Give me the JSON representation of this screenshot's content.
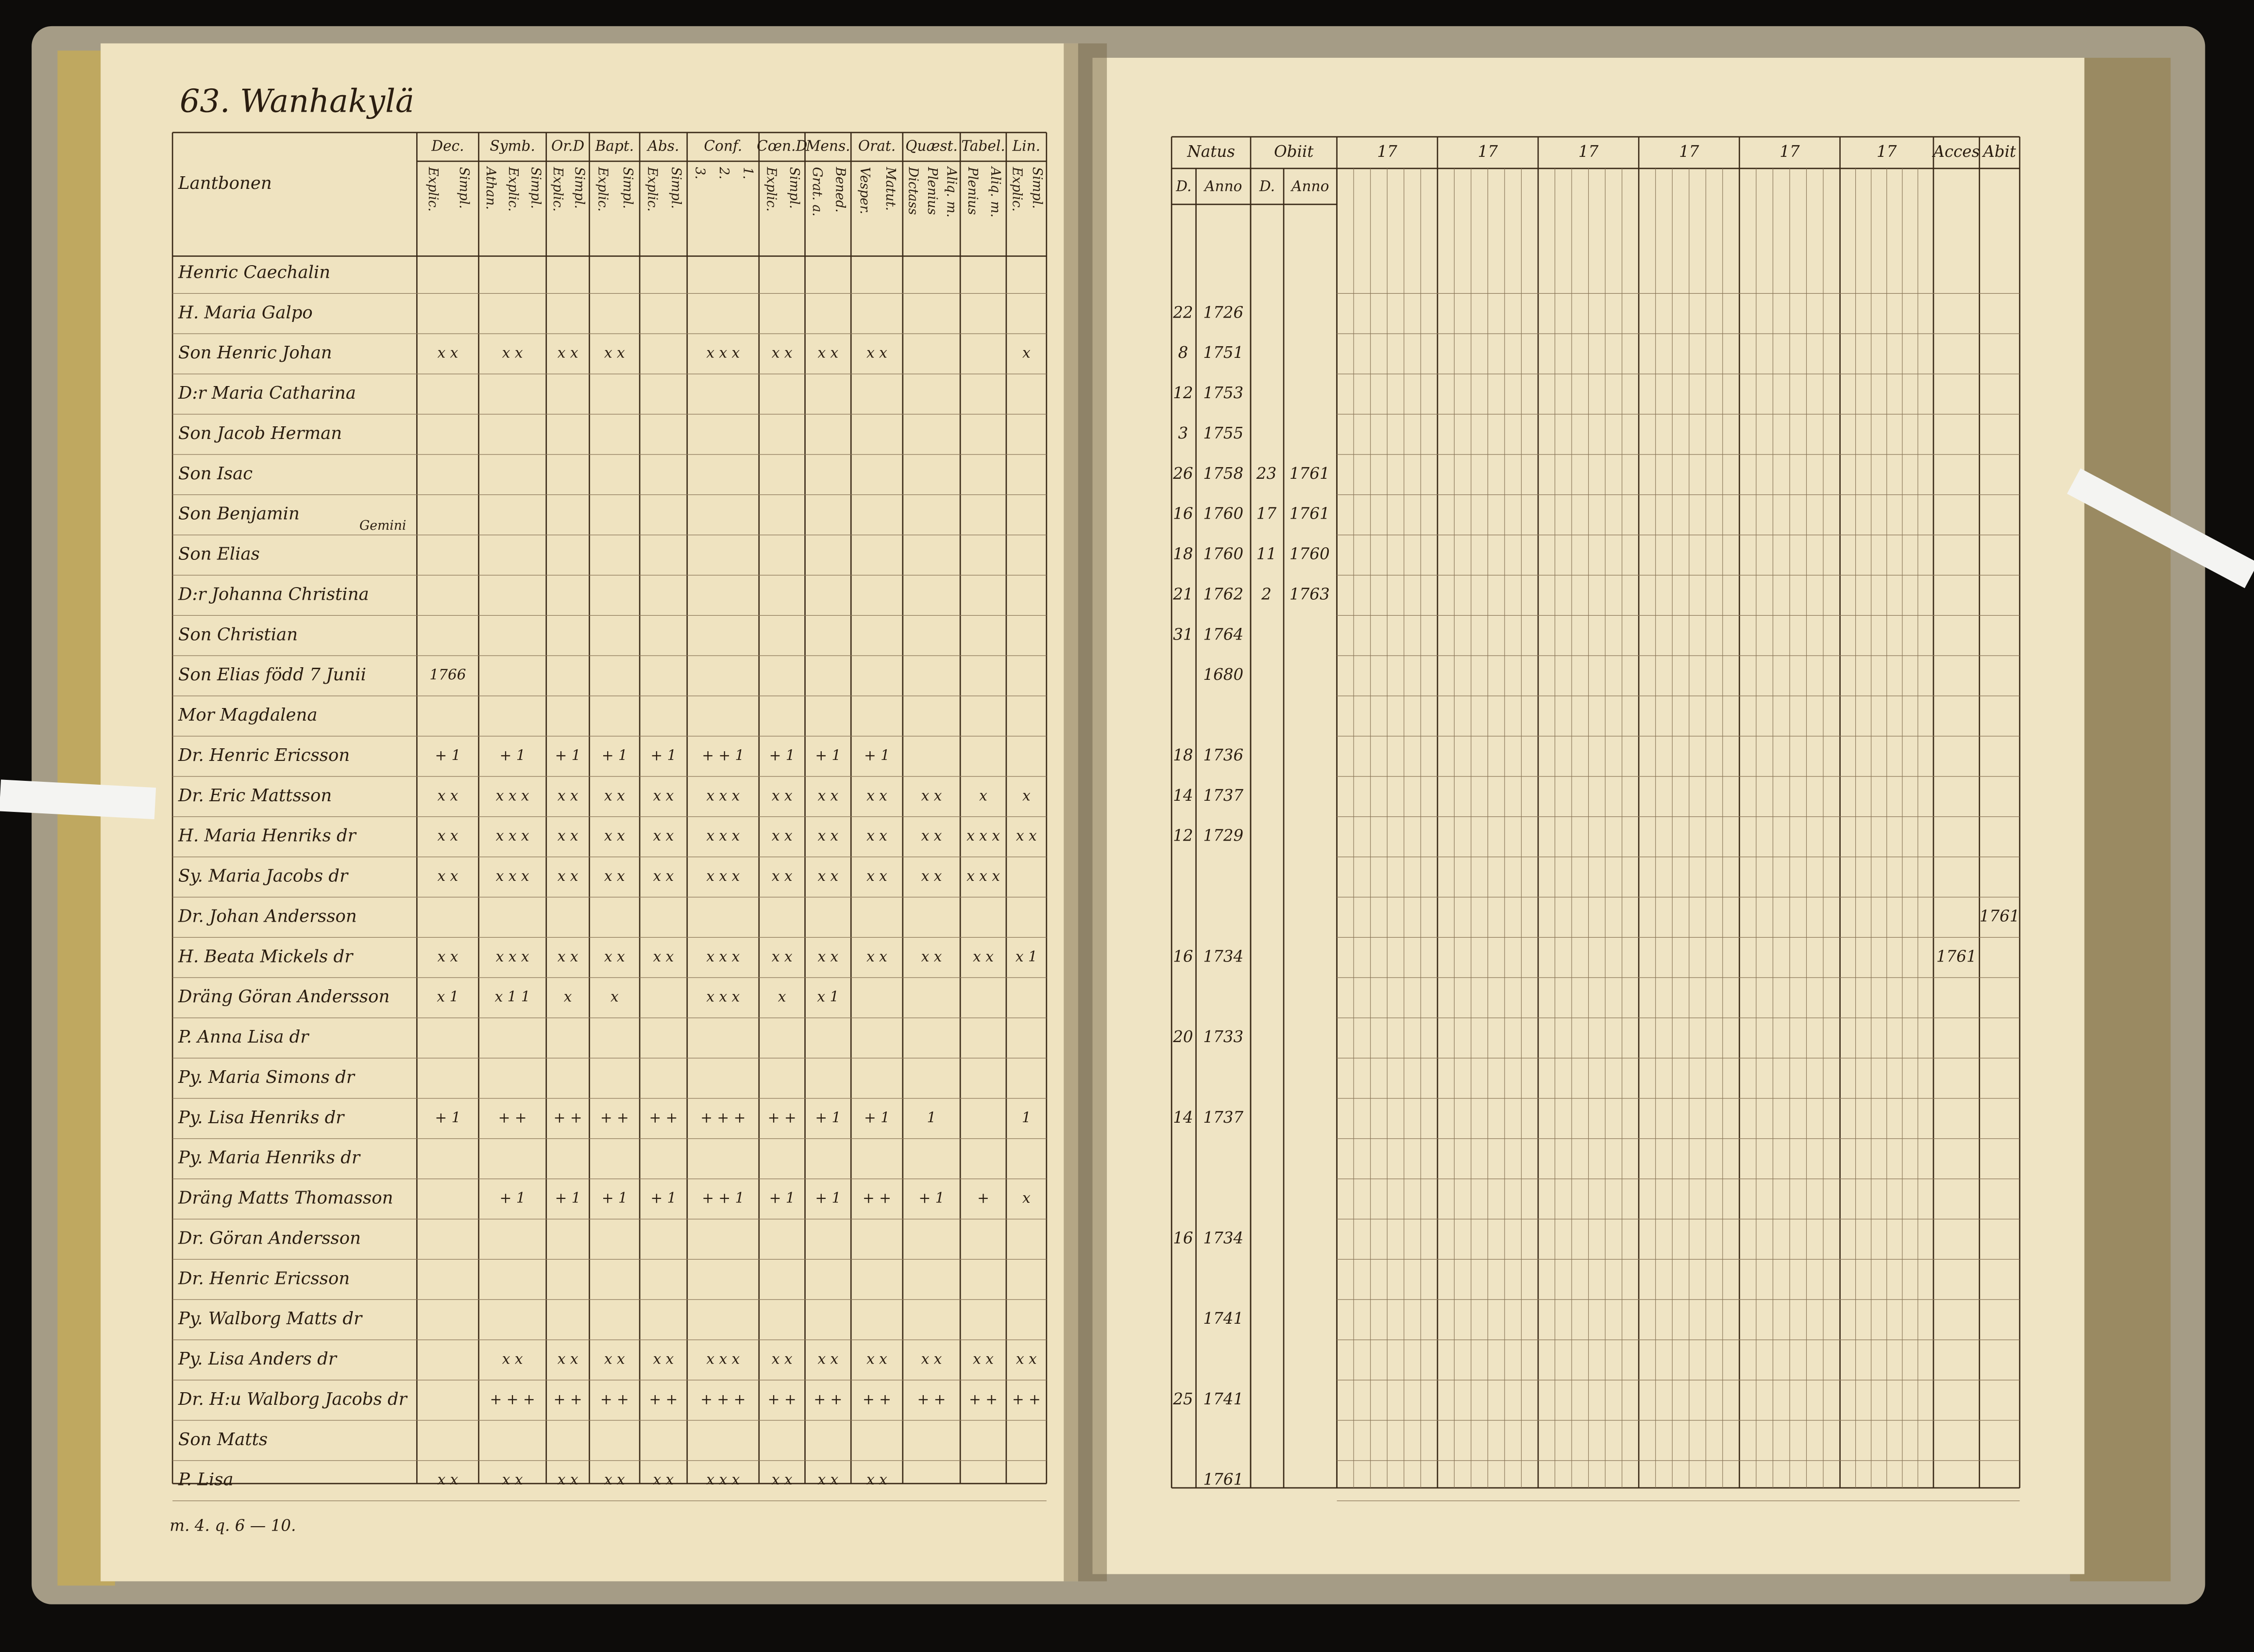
{
  "left_page": {
    "title": "63. Wanhakylä",
    "header": "Lantbonen",
    "columns": [
      {
        "name": "Dec.",
        "sub": [
          "Explic.",
          "Simpl."
        ]
      },
      {
        "name": "Symb.",
        "sub": [
          "Athan.",
          "Explic.",
          "Simpl."
        ]
      },
      {
        "name": "Or.D",
        "sub": [
          "Explic.",
          "Simpl."
        ]
      },
      {
        "name": "Bapt.",
        "sub": [
          "Explic.",
          "Simpl."
        ]
      },
      {
        "name": "Abs.",
        "sub": [
          "Explic.",
          "Simpl."
        ]
      },
      {
        "name": "Conf.",
        "sub": [
          "3.",
          "2.",
          "1."
        ]
      },
      {
        "name": "Cœn.D",
        "sub": [
          "Explic.",
          "Simpl."
        ]
      },
      {
        "name": "Mens.",
        "sub": [
          "Grat. a.",
          "Bened."
        ]
      },
      {
        "name": "Orat.",
        "sub": [
          "Vesper.",
          "Matut."
        ]
      },
      {
        "name": "Quæst.",
        "sub": [
          "Dictass",
          "Plenius",
          "Aliq. m."
        ]
      },
      {
        "name": "Tabel.",
        "sub": [
          "Plenius",
          "Aliq. m."
        ]
      },
      {
        "name": "Lin.",
        "sub": [
          "Explic.",
          "Simpl."
        ]
      }
    ],
    "rows": [
      {
        "name": "Henric Caechalin"
      },
      {
        "name": "H. Maria Galpo"
      },
      {
        "name": "Son Henric Johan",
        "marks": [
          "x x",
          "x x",
          "x x",
          "x x",
          null,
          "x x x",
          "x x",
          "x x",
          "x x",
          null,
          null,
          "x"
        ]
      },
      {
        "name": "D:r Maria Catharina"
      },
      {
        "name": "Son Jacob Herman"
      },
      {
        "name": "Son Isac"
      },
      {
        "name": "Son Benjamin",
        "note": "Gemini"
      },
      {
        "name": "Son Elias"
      },
      {
        "name": "D:r Johanna Christina"
      },
      {
        "name": "Son Christian"
      },
      {
        "name": "Son Elias född 7 Junii",
        "marks": [
          "1766",
          null,
          null,
          null,
          null,
          null,
          null,
          null,
          null,
          null,
          null,
          null
        ]
      },
      {
        "name": "Mor Magdalena"
      },
      {
        "name": "Dr. Henric Ericsson",
        "marks": [
          "+ 1",
          "+ 1",
          "+ 1",
          "+ 1",
          "+ 1",
          "+ + 1",
          "+ 1",
          "+ 1",
          "+ 1",
          null,
          null,
          null
        ]
      },
      {
        "name": "Dr. Eric Mattsson",
        "marks": [
          "x x",
          "x x x",
          "x x",
          "x x",
          "x x",
          "x x x",
          "x x",
          "x x",
          "x x",
          "x x",
          "x",
          "x"
        ]
      },
      {
        "name": "H. Maria Henriks dr",
        "marks": [
          "x x",
          "x x x",
          "x x",
          "x x",
          "x x",
          "x x x",
          "x x",
          "x x",
          "x x",
          "x x",
          "x x x",
          "x x"
        ]
      },
      {
        "name": "Sy. Maria Jacobs dr",
        "marks": [
          "x x",
          "x x x",
          "x x",
          "x x",
          "x x",
          "x x x",
          "x x",
          "x x",
          "x x",
          "x x",
          "x x x",
          null
        ]
      },
      {
        "name": "Dr. Johan Andersson"
      },
      {
        "name": "H. Beata Mickels dr",
        "marks": [
          "x x",
          "x x x",
          "x x",
          "x x",
          "x x",
          "x x x",
          "x x",
          "x x",
          "x x",
          "x x",
          "x x",
          "x 1"
        ]
      },
      {
        "name": "Dräng Göran Andersson",
        "marks": [
          "x 1",
          "x 1 1",
          "x",
          "x",
          null,
          "x x x",
          "x",
          "x 1",
          null,
          null,
          null,
          null
        ]
      },
      {
        "name": "P. Anna Lisa dr"
      },
      {
        "name": "Py. Maria Simons dr"
      },
      {
        "name": "Py. Lisa Henriks dr",
        "marks": [
          "+ 1",
          "+ +",
          "+ +",
          "+ +",
          "+ +",
          "+ + +",
          "+ +",
          "+ 1",
          "+ 1",
          "1",
          null,
          "1"
        ]
      },
      {
        "name": "Py. Maria Henriks dr"
      },
      {
        "name": "Dräng Matts Thomasson",
        "marks": [
          null,
          "+ 1",
          "+ 1",
          "+ 1",
          "+ 1",
          "+ + 1",
          "+ 1",
          "+ 1",
          "+ +",
          "+ 1",
          "+",
          "x"
        ]
      },
      {
        "name": "Dr. Göran Andersson"
      },
      {
        "name": "Dr. Henric Ericsson"
      },
      {
        "name": "Py. Walborg Matts dr"
      },
      {
        "name": "Py. Lisa Anders dr",
        "marks": [
          null,
          "x x",
          "x x",
          "x x",
          "x x",
          "x x x",
          "x x",
          "x x",
          "x x",
          "x x",
          "x x",
          "x x"
        ]
      },
      {
        "name": "Dr. H:u Walborg Jacobs dr",
        "marks": [
          null,
          "+ + +",
          "+ +",
          "+ +",
          "+ +",
          "+ + +",
          "+ +",
          "+ +",
          "+ +",
          "+ +",
          "+ +",
          "+ +"
        ]
      },
      {
        "name": "Son Matts"
      },
      {
        "name": "P. Lisa",
        "marks": [
          "x x",
          "x x",
          "x x",
          "x x",
          "x x",
          "x x x",
          "x x",
          "x x",
          "x x",
          null,
          null,
          null
        ]
      }
    ],
    "footer": "m. 4. q. 6 — 10."
  },
  "right_page": {
    "headers": [
      "Natus",
      "Obiit",
      "17",
      "17",
      "17",
      "17",
      "17",
      "17",
      "Acces",
      "Abit"
    ],
    "sub_headers": [
      "D.",
      "Anno",
      "D.",
      "Anno"
    ],
    "rows": [
      null,
      {
        "natus_day": 22,
        "natus_year": 1726
      },
      {
        "natus_day": 8,
        "natus_year": 1751
      },
      {
        "natus_day": 12,
        "natus_year": 1753
      },
      {
        "natus_day": 3,
        "natus_year": 1755
      },
      {
        "natus_day": 26,
        "natus_year": 1758,
        "obiit_day": 23,
        "obiit_year": 1761
      },
      {
        "natus_day": 16,
        "natus_year": 1760,
        "obiit_day": 17,
        "obiit_year": 1761
      },
      {
        "natus_day": 18,
        "natus_year": 1760,
        "obiit_day": 11,
        "obiit_year": 1760
      },
      {
        "natus_day": 21,
        "natus_year": 1762,
        "obiit_day": 2,
        "obiit_year": 1763
      },
      {
        "natus_day": 31,
        "natus_year": 1764
      },
      {
        "natus_year": 1680
      },
      null,
      {
        "natus_day": 18,
        "natus_year": 1736
      },
      {
        "natus_day": 14,
        "natus_year": 1737
      },
      {
        "natus_day": 12,
        "natus_year": 1729
      },
      null,
      {
        "abit": 1761
      },
      {
        "natus_day": 16,
        "natus_year": 1734,
        "acces": 1761
      },
      null,
      {
        "natus_day": 20,
        "natus_year": 1733
      },
      null,
      {
        "natus_day": 14,
        "natus_year": 1737
      },
      null,
      null,
      {
        "natus_day": 16,
        "natus_year": 1734
      },
      null,
      {
        "natus_year": 1741
      },
      null,
      {
        "natus_day": 25,
        "natus_year": 1741
      },
      null,
      {
        "natus_year": 1761
      }
    ]
  }
}
